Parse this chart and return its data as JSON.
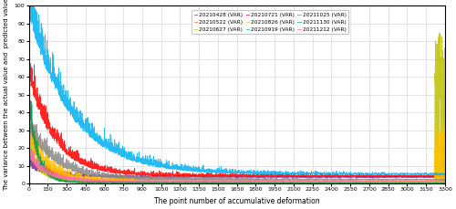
{
  "series": [
    {
      "label": "20210428 (VAR)",
      "color": "#7B2D8B",
      "peak": 6,
      "decay": 0.008,
      "base": 3.5,
      "noise_early": 3.0,
      "noise_late": 0.8,
      "end_spike": false,
      "spike_val": 0,
      "late_base": 3.5
    },
    {
      "label": "20210522 (VAR)",
      "color": "#FF6600",
      "peak": 25,
      "decay": 0.01,
      "base": 1.0,
      "noise_early": 5.0,
      "noise_late": 1.2,
      "end_spike": false,
      "spike_val": 0,
      "late_base": 1.0
    },
    {
      "label": "20210627 (VAR)",
      "color": "#BFBF00",
      "peak": 18,
      "decay": 0.012,
      "base": 0.5,
      "noise_early": 4.0,
      "noise_late": 0.8,
      "end_spike": true,
      "spike_val": 85,
      "late_base": 0.5
    },
    {
      "label": "20210721 (VAR)",
      "color": "#FF0000",
      "peak": 55,
      "decay": 0.005,
      "base": 4.0,
      "noise_early": 6.0,
      "noise_late": 1.5,
      "end_spike": false,
      "spike_val": 0,
      "late_base": 5.0
    },
    {
      "label": "20210826 (VAR)",
      "color": "#FFC000",
      "peak": 22,
      "decay": 0.007,
      "base": 0.8,
      "noise_early": 5.0,
      "noise_late": 1.5,
      "end_spike": true,
      "spike_val": 35,
      "late_base": 0.8
    },
    {
      "label": "20210919 (VAR)",
      "color": "#00B0F0",
      "peak": 90,
      "decay": 0.003,
      "base": 5.0,
      "noise_early": 8.0,
      "noise_late": 2.0,
      "end_spike": false,
      "spike_val": 0,
      "late_base": 5.0
    },
    {
      "label": "20211025 (VAR)",
      "color": "#888888",
      "peak": 28,
      "decay": 0.005,
      "base": 2.0,
      "noise_early": 5.0,
      "noise_late": 1.2,
      "end_spike": false,
      "spike_val": 0,
      "late_base": 2.0
    },
    {
      "label": "20211130 (VAR)",
      "color": "#00A050",
      "peak": 42,
      "decay": 0.015,
      "base": 0.3,
      "noise_early": 6.0,
      "noise_late": 0.5,
      "end_spike": false,
      "spike_val": 0,
      "late_base": 0.3
    },
    {
      "label": "20211212 (VAR)",
      "color": "#FF69B4",
      "peak": 14,
      "decay": 0.008,
      "base": 1.0,
      "noise_early": 3.0,
      "noise_late": 0.5,
      "end_spike": false,
      "spike_val": 0,
      "late_base": 1.0
    }
  ],
  "n_points": 3300,
  "xlim": [
    0,
    3300
  ],
  "ylim": [
    0,
    100
  ],
  "xlabel": "The point number of accumulative deformation",
  "ylabel": "The variance between the actual value and  predicted value",
  "xticks": [
    0,
    150,
    300,
    450,
    600,
    750,
    900,
    1050,
    1200,
    1350,
    1500,
    1650,
    1800,
    1950,
    2100,
    2250,
    2400,
    2550,
    2700,
    2850,
    3000,
    3150,
    3300
  ],
  "yticks": [
    0,
    10,
    20,
    30,
    40,
    50,
    60,
    70,
    80,
    90,
    100
  ],
  "grid_color": "#CCCCCC",
  "bg_color": "#FFFFFF",
  "legend_ncol": 3
}
